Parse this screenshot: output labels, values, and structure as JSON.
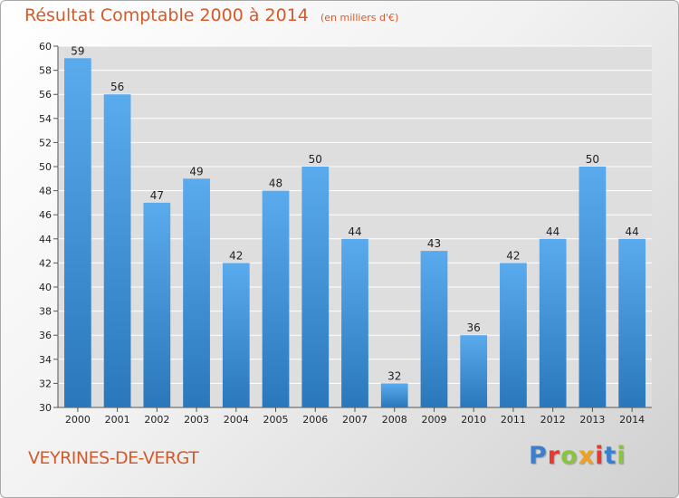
{
  "chart_data": {
    "type": "bar",
    "title": "Résultat Comptable 2000 à 2014",
    "unit": "(en milliers d'€)",
    "categories": [
      "2000",
      "2001",
      "2002",
      "2003",
      "2004",
      "2005",
      "2006",
      "2007",
      "2008",
      "2009",
      "2010",
      "2011",
      "2012",
      "2013",
      "2014"
    ],
    "values": [
      59,
      56,
      47,
      49,
      42,
      48,
      50,
      44,
      32,
      43,
      36,
      42,
      44,
      50,
      44
    ],
    "ylim": [
      30,
      60
    ],
    "ytick_step": 2,
    "grid": true,
    "xlabel": "",
    "ylabel": ""
  },
  "commune": "VEYRINES-DE-VERGT",
  "logo": {
    "letters": [
      "P",
      "r",
      "o",
      "x",
      "i",
      "t",
      "i"
    ],
    "colors": [
      "#3a7fd0",
      "#e8392c",
      "#8ac43f",
      "#f0a020",
      "#e8392c",
      "#3a7fd0",
      "#8ac43f"
    ]
  },
  "colors": {
    "bar_top": "#5aaaee",
    "bar_bottom": "#2a78bb",
    "plot_bg": "#dedede",
    "grid": "#ffffff",
    "title": "#d45a2a"
  }
}
